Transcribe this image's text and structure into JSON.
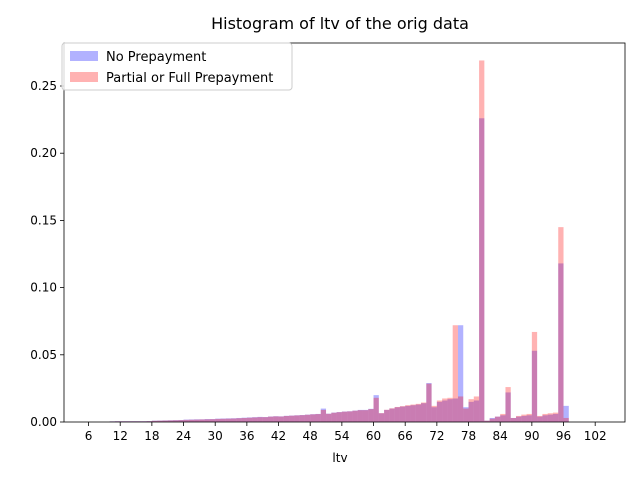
{
  "chart_data": {
    "type": "histogram",
    "title": "Histogram of ltv of the orig data",
    "xlabel": "ltv",
    "ylabel": "",
    "xlim": [
      1.35,
      107.65
    ],
    "ylim": [
      0,
      0.282
    ],
    "xticks": [
      6,
      12,
      18,
      24,
      30,
      36,
      42,
      48,
      54,
      60,
      66,
      72,
      78,
      84,
      90,
      96,
      102
    ],
    "yticks": [
      0.0,
      0.05,
      0.1,
      0.15,
      0.2,
      0.25
    ],
    "ytick_labels": [
      "0.00",
      "0.05",
      "0.10",
      "0.15",
      "0.20",
      "0.25"
    ],
    "legend_position": "upper-left",
    "bin_width": 1,
    "x": [
      6,
      7,
      8,
      9,
      10,
      11,
      12,
      13,
      14,
      15,
      16,
      17,
      18,
      19,
      20,
      21,
      22,
      23,
      24,
      25,
      26,
      27,
      28,
      29,
      30,
      31,
      32,
      33,
      34,
      35,
      36,
      37,
      38,
      39,
      40,
      41,
      42,
      43,
      44,
      45,
      46,
      47,
      48,
      49,
      50,
      51,
      52,
      53,
      54,
      55,
      56,
      57,
      58,
      59,
      60,
      61,
      62,
      63,
      64,
      65,
      66,
      67,
      68,
      69,
      70,
      71,
      72,
      73,
      74,
      75,
      76,
      77,
      78,
      79,
      80,
      81,
      82,
      83,
      84,
      85,
      86,
      87,
      88,
      89,
      90,
      91,
      92,
      93,
      94,
      95,
      96,
      97
    ],
    "series": [
      {
        "name": "No Prepayment",
        "color": "#0000ff",
        "values": [
          0,
          0,
          0,
          0,
          0.0005,
          0.0006,
          0.0006,
          0.0006,
          0.0006,
          0.0006,
          0.0006,
          0.0007,
          0.001,
          0.0011,
          0.0012,
          0.0013,
          0.0014,
          0.0015,
          0.0018,
          0.0019,
          0.002,
          0.002,
          0.0022,
          0.0022,
          0.0025,
          0.0026,
          0.0027,
          0.0028,
          0.003,
          0.0032,
          0.0034,
          0.0036,
          0.0038,
          0.0037,
          0.0041,
          0.0043,
          0.0042,
          0.0046,
          0.0048,
          0.005,
          0.0052,
          0.0055,
          0.0058,
          0.006,
          0.01,
          0.0062,
          0.007,
          0.0074,
          0.0078,
          0.008,
          0.0085,
          0.009,
          0.009,
          0.0098,
          0.02,
          0.0065,
          0.009,
          0.01,
          0.011,
          0.0115,
          0.012,
          0.0125,
          0.013,
          0.014,
          0.029,
          0.011,
          0.015,
          0.016,
          0.017,
          0.0175,
          0.072,
          0.011,
          0.015,
          0.016,
          0.226,
          0.001,
          0.003,
          0.004,
          0.005,
          0.022,
          0.003,
          0.004,
          0.0045,
          0.005,
          0.053,
          0.004,
          0.005,
          0.0055,
          0.006,
          0.118,
          0.012,
          0
        ]
      },
      {
        "name": "Partial or Full Prepayment",
        "color": "#ff0000",
        "values": [
          0,
          0,
          0,
          0,
          0.0004,
          0.0005,
          0.0005,
          0.0005,
          0.0005,
          0.0005,
          0.0005,
          0.0006,
          0.0009,
          0.001,
          0.0011,
          0.0012,
          0.0013,
          0.0014,
          0.0016,
          0.0017,
          0.0018,
          0.0019,
          0.002,
          0.0021,
          0.0023,
          0.0024,
          0.0025,
          0.0026,
          0.0028,
          0.003,
          0.0032,
          0.0034,
          0.0036,
          0.0036,
          0.004,
          0.0042,
          0.0041,
          0.0045,
          0.0047,
          0.0049,
          0.0051,
          0.0054,
          0.0057,
          0.0059,
          0.009,
          0.0061,
          0.0069,
          0.0073,
          0.0077,
          0.0079,
          0.0084,
          0.0088,
          0.0088,
          0.0096,
          0.018,
          0.0066,
          0.0091,
          0.0102,
          0.0112,
          0.0118,
          0.0125,
          0.013,
          0.0135,
          0.0145,
          0.0285,
          0.012,
          0.016,
          0.0175,
          0.018,
          0.072,
          0.019,
          0.01,
          0.017,
          0.019,
          0.269,
          0.001,
          0.0025,
          0.004,
          0.006,
          0.026,
          0.003,
          0.0045,
          0.0055,
          0.006,
          0.067,
          0.0045,
          0.006,
          0.0065,
          0.007,
          0.145,
          0.003,
          0
        ]
      }
    ]
  }
}
